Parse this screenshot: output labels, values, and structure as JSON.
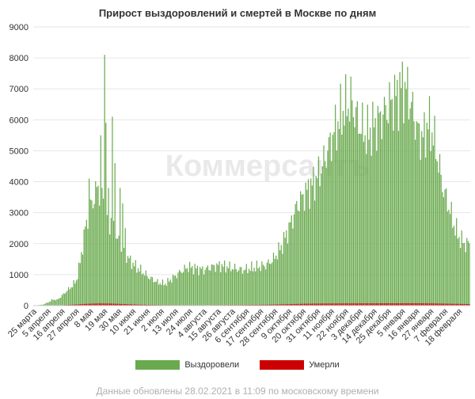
{
  "chart_data": {
    "type": "bar",
    "title": "Прирост выздоровлений и смертей в Москве по дням",
    "watermark": "Коммерсантъ",
    "footer": "Данные обновлены 28.02.2021 в 11:09 по московскому времени",
    "ylim": [
      0,
      9000
    ],
    "yticks": [
      0,
      1000,
      2000,
      3000,
      4000,
      5000,
      6000,
      7000,
      8000,
      9000
    ],
    "grid": true,
    "legend_position": "bottom",
    "colors": {
      "recovered": "#6aaa4e",
      "died": "#cc0000",
      "grid": "#e6e6e6"
    },
    "x_start": "25 марта",
    "x_labels": [
      "25 марта",
      "5 апреля",
      "16 апреля",
      "27 апреля",
      "8 мая",
      "19 мая",
      "30 мая",
      "10 июня",
      "21 июня",
      "2 июля",
      "13 июля",
      "24 июля",
      "4 августа",
      "15 августа",
      "26 августа",
      "6 сентября",
      "17 сентября",
      "28 сентября",
      "9 октября",
      "20 октября",
      "31 октября",
      "11 ноября",
      "22 ноября",
      "3 декабря",
      "14 декабря",
      "25 декабря",
      "5 января",
      "16 января",
      "27 января",
      "7 февраля",
      "18 февраля"
    ],
    "label_step_days": 11,
    "series": [
      {
        "name": "Выздоровели",
        "color": "#6aaa4e",
        "key_points": [
          [
            0,
            0
          ],
          [
            7,
            30
          ],
          [
            12,
            120
          ],
          [
            15,
            200
          ],
          [
            18,
            180
          ],
          [
            21,
            280
          ],
          [
            25,
            450
          ],
          [
            29,
            600
          ],
          [
            33,
            800
          ],
          [
            36,
            1400
          ],
          [
            40,
            2500
          ],
          [
            44,
            3200
          ],
          [
            47,
            3500
          ],
          [
            50,
            3900
          ],
          [
            53,
            3400
          ],
          [
            56,
            3000
          ],
          [
            60,
            2700
          ],
          [
            64,
            2200
          ],
          [
            68,
            1900
          ],
          [
            72,
            1600
          ],
          [
            78,
            1300
          ],
          [
            84,
            1100
          ],
          [
            90,
            900
          ],
          [
            96,
            750
          ],
          [
            102,
            700
          ],
          [
            108,
            900
          ],
          [
            114,
            1100
          ],
          [
            120,
            1250
          ],
          [
            126,
            1200
          ],
          [
            132,
            1150
          ],
          [
            138,
            1250
          ],
          [
            144,
            1300
          ],
          [
            150,
            1250
          ],
          [
            156,
            1200
          ],
          [
            162,
            1150
          ],
          [
            168,
            1200
          ],
          [
            174,
            1250
          ],
          [
            180,
            1300
          ],
          [
            186,
            1500
          ],
          [
            192,
            1900
          ],
          [
            198,
            2500
          ],
          [
            204,
            3200
          ],
          [
            210,
            3600
          ],
          [
            216,
            3900
          ],
          [
            222,
            4300
          ],
          [
            228,
            5000
          ],
          [
            234,
            5700
          ],
          [
            240,
            6300
          ],
          [
            246,
            6600
          ],
          [
            252,
            5900
          ],
          [
            258,
            5500
          ],
          [
            264,
            5800
          ],
          [
            270,
            6100
          ],
          [
            276,
            6500
          ],
          [
            282,
            6800
          ],
          [
            286,
            7100
          ],
          [
            290,
            6900
          ],
          [
            294,
            6300
          ],
          [
            298,
            5600
          ],
          [
            302,
            5400
          ],
          [
            306,
            5900
          ],
          [
            310,
            5500
          ],
          [
            314,
            4600
          ],
          [
            318,
            3700
          ],
          [
            322,
            3200
          ],
          [
            326,
            2600
          ],
          [
            330,
            2200
          ],
          [
            334,
            2000
          ],
          [
            338,
            2000
          ]
        ],
        "spikes": [
          [
            40,
            2550
          ],
          [
            43,
            4100
          ],
          [
            52,
            5500
          ],
          [
            53,
            3800
          ],
          [
            55,
            8100
          ],
          [
            56,
            5900
          ],
          [
            58,
            3800
          ],
          [
            61,
            6100
          ],
          [
            63,
            4600
          ],
          [
            67,
            3800
          ],
          [
            69,
            3300
          ],
          [
            71,
            2500
          ]
        ]
      },
      {
        "name": "Умерли",
        "color": "#cc0000",
        "key_points": [
          [
            0,
            0
          ],
          [
            10,
            3
          ],
          [
            20,
            10
          ],
          [
            30,
            30
          ],
          [
            40,
            55
          ],
          [
            50,
            70
          ],
          [
            60,
            65
          ],
          [
            70,
            50
          ],
          [
            80,
            35
          ],
          [
            90,
            25
          ],
          [
            100,
            18
          ],
          [
            110,
            15
          ],
          [
            120,
            14
          ],
          [
            130,
            14
          ],
          [
            140,
            15
          ],
          [
            150,
            18
          ],
          [
            160,
            20
          ],
          [
            170,
            25
          ],
          [
            180,
            30
          ],
          [
            190,
            40
          ],
          [
            200,
            50
          ],
          [
            210,
            60
          ],
          [
            220,
            65
          ],
          [
            230,
            68
          ],
          [
            240,
            70
          ],
          [
            250,
            72
          ],
          [
            260,
            72
          ],
          [
            270,
            73
          ],
          [
            280,
            74
          ],
          [
            290,
            75
          ],
          [
            300,
            74
          ],
          [
            310,
            70
          ],
          [
            320,
            62
          ],
          [
            330,
            55
          ],
          [
            338,
            50
          ]
        ]
      }
    ],
    "days": 339
  }
}
